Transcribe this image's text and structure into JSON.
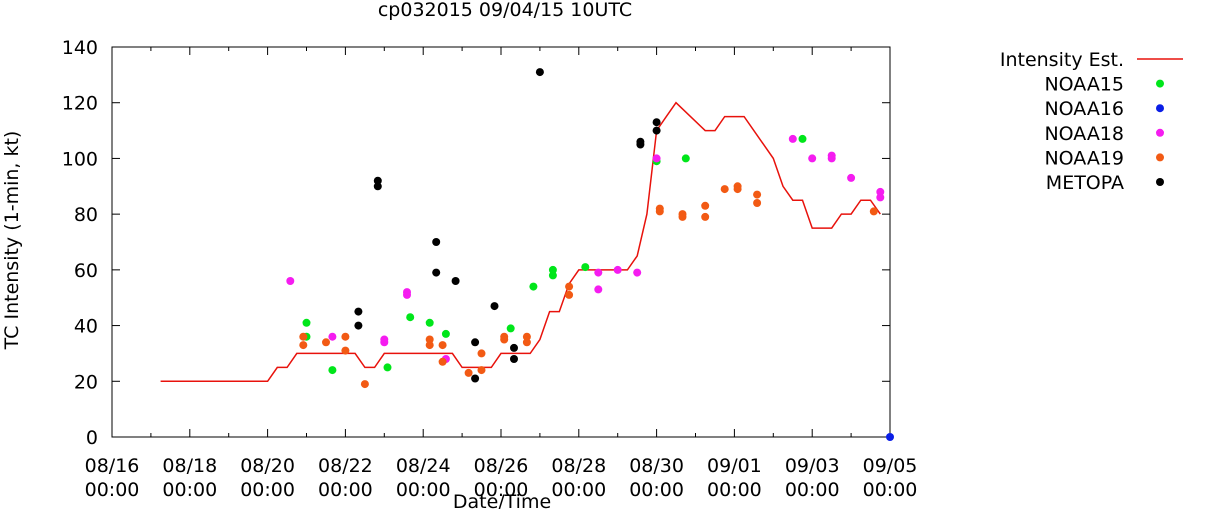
{
  "chart_data": {
    "type": "scatter",
    "title": "cp032015 09/04/15 10UTC",
    "xlabel": "Date/Time",
    "ylabel": "TC Intensity (1-min, kt)",
    "ylim": [
      0,
      140
    ],
    "yticks": [
      0,
      20,
      40,
      60,
      80,
      100,
      120,
      140
    ],
    "xlim": [
      "2015-08-16 00:00",
      "2015-09-05 00:00"
    ],
    "xticks": [
      {
        "date": "2015-08-16 00:00",
        "line1": "08/16",
        "line2": "00:00"
      },
      {
        "date": "2015-08-18 00:00",
        "line1": "08/18",
        "line2": "00:00"
      },
      {
        "date": "2015-08-20 00:00",
        "line1": "08/20",
        "line2": "00:00"
      },
      {
        "date": "2015-08-22 00:00",
        "line1": "08/22",
        "line2": "00:00"
      },
      {
        "date": "2015-08-24 00:00",
        "line1": "08/24",
        "line2": "00:00"
      },
      {
        "date": "2015-08-26 00:00",
        "line1": "08/26",
        "line2": "00:00"
      },
      {
        "date": "2015-08-28 00:00",
        "line1": "08/28",
        "line2": "00:00"
      },
      {
        "date": "2015-08-30 00:00",
        "line1": "08/30",
        "line2": "00:00"
      },
      {
        "date": "2015-09-01 00:00",
        "line1": "09/01",
        "line2": "00:00"
      },
      {
        "date": "2015-09-03 00:00",
        "line1": "09/03",
        "line2": "00:00"
      },
      {
        "date": "2015-09-05 00:00",
        "line1": "09/05",
        "line2": "00:00"
      }
    ],
    "grid": false,
    "legend": "right, outside plot",
    "series": [
      {
        "name": "Intensity Est.",
        "kind": "line",
        "color": "#e8120c",
        "points": [
          [
            "2015-08-17 06:00",
            20
          ],
          [
            "2015-08-20 00:00",
            20
          ],
          [
            "2015-08-20 06:00",
            25
          ],
          [
            "2015-08-20 12:00",
            25
          ],
          [
            "2015-08-20 18:00",
            30
          ],
          [
            "2015-08-22 06:00",
            30
          ],
          [
            "2015-08-22 12:00",
            25
          ],
          [
            "2015-08-22 18:00",
            25
          ],
          [
            "2015-08-23 00:00",
            30
          ],
          [
            "2015-08-24 18:00",
            30
          ],
          [
            "2015-08-25 00:00",
            25
          ],
          [
            "2015-08-25 18:00",
            25
          ],
          [
            "2015-08-26 00:00",
            30
          ],
          [
            "2015-08-26 18:00",
            30
          ],
          [
            "2015-08-27 00:00",
            35
          ],
          [
            "2015-08-27 06:00",
            45
          ],
          [
            "2015-08-27 12:00",
            45
          ],
          [
            "2015-08-27 18:00",
            55
          ],
          [
            "2015-08-28 00:00",
            60
          ],
          [
            "2015-08-29 06:00",
            60
          ],
          [
            "2015-08-29 12:00",
            65
          ],
          [
            "2015-08-29 18:00",
            80
          ],
          [
            "2015-08-30 00:00",
            110
          ],
          [
            "2015-08-30 06:00",
            115
          ],
          [
            "2015-08-30 12:00",
            120
          ],
          [
            "2015-08-31 06:00",
            110
          ],
          [
            "2015-08-31 12:00",
            110
          ],
          [
            "2015-08-31 18:00",
            115
          ],
          [
            "2015-09-01 06:00",
            115
          ],
          [
            "2015-09-02 00:00",
            100
          ],
          [
            "2015-09-02 06:00",
            90
          ],
          [
            "2015-09-02 12:00",
            85
          ],
          [
            "2015-09-02 18:00",
            85
          ],
          [
            "2015-09-03 00:00",
            75
          ],
          [
            "2015-09-03 12:00",
            75
          ],
          [
            "2015-09-03 18:00",
            80
          ],
          [
            "2015-09-04 00:00",
            80
          ],
          [
            "2015-09-04 06:00",
            85
          ],
          [
            "2015-09-04 12:00",
            85
          ],
          [
            "2015-09-04 18:00",
            80
          ]
        ]
      },
      {
        "name": "NOAA15",
        "kind": "points",
        "color": "#00e61a",
        "points": [
          [
            "2015-08-21 00:00",
            41
          ],
          [
            "2015-08-21 00:00",
            36
          ],
          [
            "2015-08-21 16:00",
            24
          ],
          [
            "2015-08-23 02:00",
            25
          ],
          [
            "2015-08-23 16:00",
            43
          ],
          [
            "2015-08-24 04:00",
            41
          ],
          [
            "2015-08-24 14:00",
            37
          ],
          [
            "2015-08-26 06:00",
            39
          ],
          [
            "2015-08-26 20:00",
            54
          ],
          [
            "2015-08-27 08:00",
            58
          ],
          [
            "2015-08-27 08:00",
            60
          ],
          [
            "2015-08-28 04:00",
            61
          ],
          [
            "2015-08-30 00:00",
            99
          ],
          [
            "2015-08-30 18:00",
            100
          ],
          [
            "2015-09-02 18:00",
            107
          ]
        ]
      },
      {
        "name": "NOAA16",
        "kind": "points",
        "color": "#0a1ee6",
        "points": [
          [
            "2015-09-05 00:00",
            0
          ]
        ]
      },
      {
        "name": "NOAA18",
        "kind": "points",
        "color": "#f51cf0",
        "points": [
          [
            "2015-08-20 14:00",
            56
          ],
          [
            "2015-08-21 16:00",
            36
          ],
          [
            "2015-08-23 00:00",
            35
          ],
          [
            "2015-08-23 00:00",
            34
          ],
          [
            "2015-08-23 14:00",
            52
          ],
          [
            "2015-08-23 14:00",
            51
          ],
          [
            "2015-08-24 14:00",
            28
          ],
          [
            "2015-08-28 12:00",
            59
          ],
          [
            "2015-08-28 12:00",
            53
          ],
          [
            "2015-08-29 12:00",
            59
          ],
          [
            "2015-08-30 00:00",
            100
          ],
          [
            "2015-08-29 00:00",
            60
          ],
          [
            "2015-09-02 12:00",
            107
          ],
          [
            "2015-09-03 00:00",
            100
          ],
          [
            "2015-09-03 12:00",
            101
          ],
          [
            "2015-09-03 12:00",
            100
          ],
          [
            "2015-09-04 00:00",
            93
          ],
          [
            "2015-09-04 18:00",
            88
          ],
          [
            "2015-09-04 18:00",
            86
          ]
        ]
      },
      {
        "name": "NOAA19",
        "kind": "points",
        "color": "#f25a14",
        "points": [
          [
            "2015-08-20 22:00",
            36
          ],
          [
            "2015-08-20 22:00",
            33
          ],
          [
            "2015-08-21 12:00",
            34
          ],
          [
            "2015-08-22 00:00",
            36
          ],
          [
            "2015-08-22 00:00",
            31
          ],
          [
            "2015-08-22 12:00",
            19
          ],
          [
            "2015-08-24 04:00",
            35
          ],
          [
            "2015-08-24 04:00",
            33
          ],
          [
            "2015-08-24 12:00",
            33
          ],
          [
            "2015-08-24 12:00",
            27
          ],
          [
            "2015-08-25 04:00",
            23
          ],
          [
            "2015-08-25 12:00",
            30
          ],
          [
            "2015-08-25 12:00",
            24
          ],
          [
            "2015-08-26 02:00",
            36
          ],
          [
            "2015-08-26 02:00",
            35
          ],
          [
            "2015-08-26 16:00",
            36
          ],
          [
            "2015-08-26 16:00",
            34
          ],
          [
            "2015-08-27 18:00",
            54
          ],
          [
            "2015-08-27 18:00",
            51
          ],
          [
            "2015-08-30 02:00",
            82
          ],
          [
            "2015-08-30 02:00",
            81
          ],
          [
            "2015-08-30 16:00",
            80
          ],
          [
            "2015-08-30 16:00",
            79
          ],
          [
            "2015-08-31 06:00",
            83
          ],
          [
            "2015-08-31 06:00",
            79
          ],
          [
            "2015-08-31 18:00",
            89
          ],
          [
            "2015-09-01 02:00",
            90
          ],
          [
            "2015-09-01 02:00",
            89
          ],
          [
            "2015-09-01 14:00",
            87
          ],
          [
            "2015-09-01 14:00",
            84
          ],
          [
            "2015-09-04 14:00",
            81
          ]
        ]
      },
      {
        "name": "METOPA",
        "kind": "points",
        "color": "#000000",
        "points": [
          [
            "2015-08-22 08:00",
            45
          ],
          [
            "2015-08-22 08:00",
            40
          ],
          [
            "2015-08-22 20:00",
            92
          ],
          [
            "2015-08-22 20:00",
            90
          ],
          [
            "2015-08-24 08:00",
            70
          ],
          [
            "2015-08-24 08:00",
            59
          ],
          [
            "2015-08-24 20:00",
            56
          ],
          [
            "2015-08-25 08:00",
            34
          ],
          [
            "2015-08-25 08:00",
            21
          ],
          [
            "2015-08-25 20:00",
            47
          ],
          [
            "2015-08-26 08:00",
            32
          ],
          [
            "2015-08-26 08:00",
            28
          ],
          [
            "2015-08-27 00:00",
            131
          ],
          [
            "2015-08-29 14:00",
            106
          ],
          [
            "2015-08-29 14:00",
            105
          ],
          [
            "2015-08-30 00:00",
            113
          ],
          [
            "2015-08-30 00:00",
            110
          ]
        ]
      }
    ]
  }
}
